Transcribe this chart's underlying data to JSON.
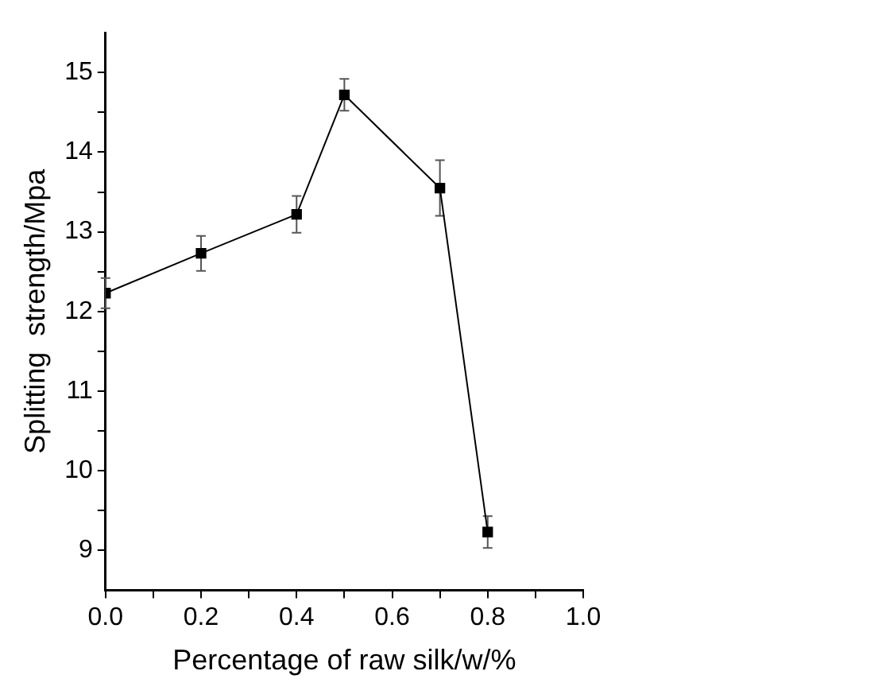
{
  "chart_data": {
    "type": "line",
    "xlabel": "Percentage of raw silk/w/%",
    "ylabel": "Splitting  strength/Mpa",
    "x": [
      0,
      0.2,
      0.4,
      0.5,
      0.7,
      0.8
    ],
    "series": [
      {
        "color": "#000000",
        "values": [
          12.23,
          12.73,
          13.22,
          14.72,
          13.55,
          9.23
        ],
        "errors": [
          0.19,
          0.22,
          0.23,
          0.2,
          0.35,
          0.2
        ]
      }
    ],
    "marker": "square",
    "line_style": "solid",
    "grid": false,
    "legend": false,
    "xlim": [
      0,
      1
    ],
    "xticks": [
      {
        "value": 0,
        "label": "0.0"
      },
      {
        "value": 0.1,
        "label": null
      },
      {
        "value": 0.2,
        "label": "0.2"
      },
      {
        "value": 0.3,
        "label": null
      },
      {
        "value": 0.4,
        "label": "0.4"
      },
      {
        "value": 0.5,
        "label": null
      },
      {
        "value": 0.6,
        "label": "0.6"
      },
      {
        "value": 0.7,
        "label": null
      },
      {
        "value": 0.8,
        "label": "0.8"
      },
      {
        "value": 0.9,
        "label": null
      },
      {
        "value": 1,
        "label": "1.0"
      }
    ],
    "ylim": [
      8.5,
      15.5
    ],
    "yticks": [
      9,
      {
        "value": 9.5,
        "label": null
      },
      10,
      {
        "value": 10.5,
        "label": null
      },
      11,
      {
        "value": 11.5,
        "label": null
      },
      12,
      {
        "value": 12.5,
        "label": null
      },
      13,
      {
        "value": 13.5,
        "label": null
      },
      14,
      {
        "value": 14.5,
        "label": null
      },
      15
    ]
  }
}
